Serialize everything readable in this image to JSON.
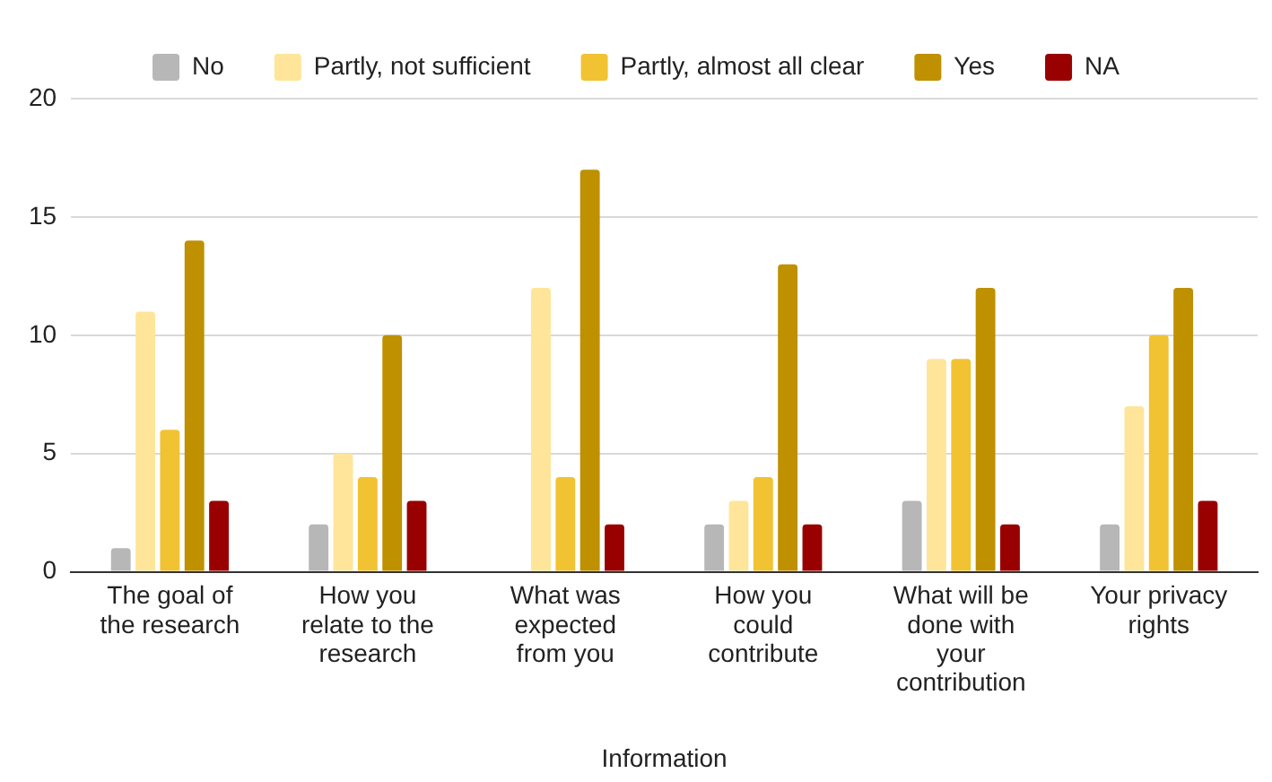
{
  "chart_data": {
    "type": "bar",
    "xlabel": "Information",
    "categories": [
      "The goal of the research",
      "How you relate to the research",
      "What was expected from you",
      "How you could contribute",
      "What will be done with your contribution",
      "Your privacy rights"
    ],
    "series": [
      {
        "name": "No",
        "color": "#b7b7b7",
        "values": [
          1,
          2,
          0,
          2,
          3,
          2
        ]
      },
      {
        "name": "Partly, not sufficient",
        "color": "#ffe599",
        "values": [
          11,
          5,
          12,
          3,
          9,
          7
        ]
      },
      {
        "name": "Partly, almost all clear",
        "color": "#f1c232",
        "values": [
          6,
          4,
          4,
          4,
          9,
          10
        ]
      },
      {
        "name": "Yes",
        "color": "#bf9000",
        "values": [
          14,
          10,
          17,
          13,
          12,
          12
        ]
      },
      {
        "name": "NA",
        "color": "#990000",
        "values": [
          3,
          3,
          2,
          2,
          2,
          3
        ]
      }
    ],
    "ylim": [
      0,
      20
    ],
    "yticks": [
      0,
      5,
      10,
      15,
      20
    ],
    "grid": "y",
    "legend": "top"
  }
}
